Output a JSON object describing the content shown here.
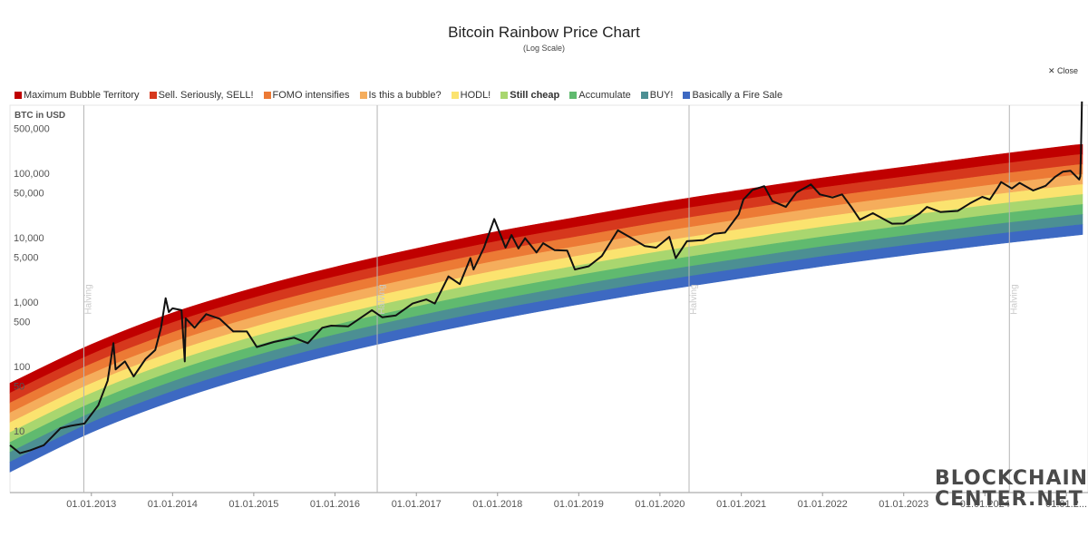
{
  "close_label": "✕ Close",
  "watermark": [
    "BLOCKCHAIN",
    "CENTER.NET"
  ],
  "chart_data": {
    "type": "area",
    "title": "Bitcoin Rainbow Price Chart",
    "subtitle": "(Log Scale)",
    "ylabel": "BTC in USD",
    "yscale": "log",
    "grid": false,
    "legend_position": "top",
    "ylim": [
      1,
      1500000
    ],
    "x_range": [
      "2012-01-01",
      "2025-03-15"
    ],
    "x_ticks": [
      "01.01.2013",
      "01.01.2014",
      "01.01.2015",
      "01.01.2016",
      "01.01.2017",
      "01.01.2018",
      "01.01.2019",
      "01.01.2020",
      "01.01.2021",
      "01.01.2022",
      "01.01.2023",
      "01.01.2024",
      "01.01.2..."
    ],
    "y_ticks": [
      {
        "value": 500000,
        "label": "500,000"
      },
      {
        "value": 100000,
        "label": "100,000"
      },
      {
        "value": 50000,
        "label": "50,000"
      },
      {
        "value": 10000,
        "label": "10,000"
      },
      {
        "value": 5000,
        "label": "5,000"
      },
      {
        "value": 1000,
        "label": "1,000"
      },
      {
        "value": 500,
        "label": "500"
      },
      {
        "value": 100,
        "label": "100"
      },
      {
        "value": 50,
        "label": "50"
      },
      {
        "value": 10,
        "label": "10"
      }
    ],
    "halvings": [
      {
        "date": "2012-11-28",
        "label": "Halving"
      },
      {
        "date": "2016-07-09",
        "label": "Halving"
      },
      {
        "date": "2020-05-11",
        "label": "Halving"
      },
      {
        "date": "2024-04-20",
        "label": "Halving"
      }
    ],
    "bands": [
      {
        "name": "Maximum Bubble Territory",
        "color": "#c00000"
      },
      {
        "name": "Sell. Seriously, SELL!",
        "color": "#d6381d"
      },
      {
        "name": "FOMO intensifies",
        "color": "#ec7a35"
      },
      {
        "name": "Is this a bubble?",
        "color": "#f5ad5c"
      },
      {
        "name": "HODL!",
        "color": "#fbe36f"
      },
      {
        "name": "Still cheap",
        "color": "#a9d66f",
        "bold": true
      },
      {
        "name": "Accumulate",
        "color": "#60ba6f"
      },
      {
        "name": "BUY!",
        "color": "#4c8f93"
      },
      {
        "name": "Basically a Fire Sale",
        "color": "#3d69c2"
      }
    ],
    "band_boundaries": [
      {
        "date": "2012-01-01",
        "top": 55,
        "bottom": 2.3
      },
      {
        "date": "2013-01-01",
        "top": 220,
        "bottom": 9.5
      },
      {
        "date": "2014-01-01",
        "top": 680,
        "bottom": 29
      },
      {
        "date": "2015-01-01",
        "top": 1650,
        "bottom": 72
      },
      {
        "date": "2016-01-01",
        "top": 3500,
        "bottom": 155
      },
      {
        "date": "2017-01-01",
        "top": 6800,
        "bottom": 300
      },
      {
        "date": "2018-01-01",
        "top": 12500,
        "bottom": 540
      },
      {
        "date": "2019-01-01",
        "top": 21000,
        "bottom": 920
      },
      {
        "date": "2020-01-01",
        "top": 35000,
        "bottom": 1500
      },
      {
        "date": "2021-01-01",
        "top": 55000,
        "bottom": 2350
      },
      {
        "date": "2022-01-01",
        "top": 85000,
        "bottom": 3600
      },
      {
        "date": "2023-01-01",
        "top": 125000,
        "bottom": 5300
      },
      {
        "date": "2024-01-01",
        "top": 185000,
        "bottom": 7600
      },
      {
        "date": "2025-01-01",
        "top": 265000,
        "bottom": 10500
      },
      {
        "date": "2025-03-15",
        "top": 280000,
        "bottom": 11200
      }
    ],
    "price_series": [
      {
        "date": "2012-01-01",
        "price": 6
      },
      {
        "date": "2012-02-15",
        "price": 4.5
      },
      {
        "date": "2012-04-01",
        "price": 5
      },
      {
        "date": "2012-06-01",
        "price": 6
      },
      {
        "date": "2012-08-15",
        "price": 11
      },
      {
        "date": "2012-10-01",
        "price": 12
      },
      {
        "date": "2012-12-01",
        "price": 13
      },
      {
        "date": "2013-02-01",
        "price": 25
      },
      {
        "date": "2013-03-15",
        "price": 60
      },
      {
        "date": "2013-04-10",
        "price": 230
      },
      {
        "date": "2013-04-20",
        "price": 90
      },
      {
        "date": "2013-06-01",
        "price": 120
      },
      {
        "date": "2013-07-10",
        "price": 70
      },
      {
        "date": "2013-09-01",
        "price": 130
      },
      {
        "date": "2013-10-15",
        "price": 180
      },
      {
        "date": "2013-11-10",
        "price": 400
      },
      {
        "date": "2013-12-01",
        "price": 1150
      },
      {
        "date": "2013-12-15",
        "price": 700
      },
      {
        "date": "2014-01-01",
        "price": 800
      },
      {
        "date": "2014-02-10",
        "price": 750
      },
      {
        "date": "2014-02-25",
        "price": 120
      },
      {
        "date": "2014-03-01",
        "price": 560
      },
      {
        "date": "2014-04-10",
        "price": 400
      },
      {
        "date": "2014-06-01",
        "price": 650
      },
      {
        "date": "2014-08-01",
        "price": 550
      },
      {
        "date": "2014-10-01",
        "price": 350
      },
      {
        "date": "2014-12-01",
        "price": 350
      },
      {
        "date": "2015-01-15",
        "price": 200
      },
      {
        "date": "2015-04-01",
        "price": 240
      },
      {
        "date": "2015-07-01",
        "price": 280
      },
      {
        "date": "2015-09-01",
        "price": 230
      },
      {
        "date": "2015-11-05",
        "price": 400
      },
      {
        "date": "2015-12-15",
        "price": 430
      },
      {
        "date": "2016-03-01",
        "price": 420
      },
      {
        "date": "2016-06-15",
        "price": 750
      },
      {
        "date": "2016-08-01",
        "price": 580
      },
      {
        "date": "2016-10-01",
        "price": 620
      },
      {
        "date": "2016-12-15",
        "price": 950
      },
      {
        "date": "2017-02-15",
        "price": 1100
      },
      {
        "date": "2017-03-25",
        "price": 950
      },
      {
        "date": "2017-05-25",
        "price": 2500
      },
      {
        "date": "2017-07-15",
        "price": 1900
      },
      {
        "date": "2017-09-01",
        "price": 4800
      },
      {
        "date": "2017-09-15",
        "price": 3200
      },
      {
        "date": "2017-11-01",
        "price": 7000
      },
      {
        "date": "2017-12-17",
        "price": 19500
      },
      {
        "date": "2018-02-06",
        "price": 7000
      },
      {
        "date": "2018-03-05",
        "price": 11000
      },
      {
        "date": "2018-04-05",
        "price": 6800
      },
      {
        "date": "2018-05-05",
        "price": 9800
      },
      {
        "date": "2018-06-25",
        "price": 5900
      },
      {
        "date": "2018-07-25",
        "price": 8200
      },
      {
        "date": "2018-09-15",
        "price": 6400
      },
      {
        "date": "2018-11-10",
        "price": 6300
      },
      {
        "date": "2018-12-15",
        "price": 3200
      },
      {
        "date": "2019-02-15",
        "price": 3600
      },
      {
        "date": "2019-04-15",
        "price": 5200
      },
      {
        "date": "2019-06-26",
        "price": 13000
      },
      {
        "date": "2019-09-01",
        "price": 9600
      },
      {
        "date": "2019-10-25",
        "price": 7400
      },
      {
        "date": "2019-12-15",
        "price": 7000
      },
      {
        "date": "2020-02-12",
        "price": 10300
      },
      {
        "date": "2020-03-12",
        "price": 4800
      },
      {
        "date": "2020-05-01",
        "price": 8800
      },
      {
        "date": "2020-07-15",
        "price": 9200
      },
      {
        "date": "2020-09-01",
        "price": 11500
      },
      {
        "date": "2020-10-20",
        "price": 12000
      },
      {
        "date": "2020-12-20",
        "price": 23000
      },
      {
        "date": "2021-01-10",
        "price": 39000
      },
      {
        "date": "2021-02-20",
        "price": 55000
      },
      {
        "date": "2021-04-14",
        "price": 63000
      },
      {
        "date": "2021-05-20",
        "price": 37000
      },
      {
        "date": "2021-07-20",
        "price": 30000
      },
      {
        "date": "2021-09-05",
        "price": 50000
      },
      {
        "date": "2021-11-10",
        "price": 67000
      },
      {
        "date": "2021-12-20",
        "price": 47000
      },
      {
        "date": "2022-02-15",
        "price": 42000
      },
      {
        "date": "2022-03-30",
        "price": 47000
      },
      {
        "date": "2022-05-10",
        "price": 30000
      },
      {
        "date": "2022-06-18",
        "price": 19000
      },
      {
        "date": "2022-08-15",
        "price": 24000
      },
      {
        "date": "2022-11-10",
        "price": 16500
      },
      {
        "date": "2023-01-01",
        "price": 16600
      },
      {
        "date": "2023-03-15",
        "price": 24000
      },
      {
        "date": "2023-04-15",
        "price": 30000
      },
      {
        "date": "2023-06-15",
        "price": 25000
      },
      {
        "date": "2023-09-01",
        "price": 26000
      },
      {
        "date": "2023-10-25",
        "price": 34000
      },
      {
        "date": "2023-12-20",
        "price": 43000
      },
      {
        "date": "2024-01-23",
        "price": 39000
      },
      {
        "date": "2024-02-28",
        "price": 60000
      },
      {
        "date": "2024-03-14",
        "price": 73000
      },
      {
        "date": "2024-05-01",
        "price": 58000
      },
      {
        "date": "2024-06-05",
        "price": 71000
      },
      {
        "date": "2024-08-05",
        "price": 54000
      },
      {
        "date": "2024-09-30",
        "price": 64000
      },
      {
        "date": "2024-11-12",
        "price": 88000
      },
      {
        "date": "2024-12-17",
        "price": 106000
      },
      {
        "date": "2025-01-20",
        "price": 109000
      },
      {
        "date": "2025-02-28",
        "price": 80000
      },
      {
        "date": "2025-03-05",
        "price": 90000
      },
      {
        "date": "2025-03-08",
        "price": 240000
      },
      {
        "date": "2025-03-12",
        "price": 1300000
      }
    ]
  }
}
